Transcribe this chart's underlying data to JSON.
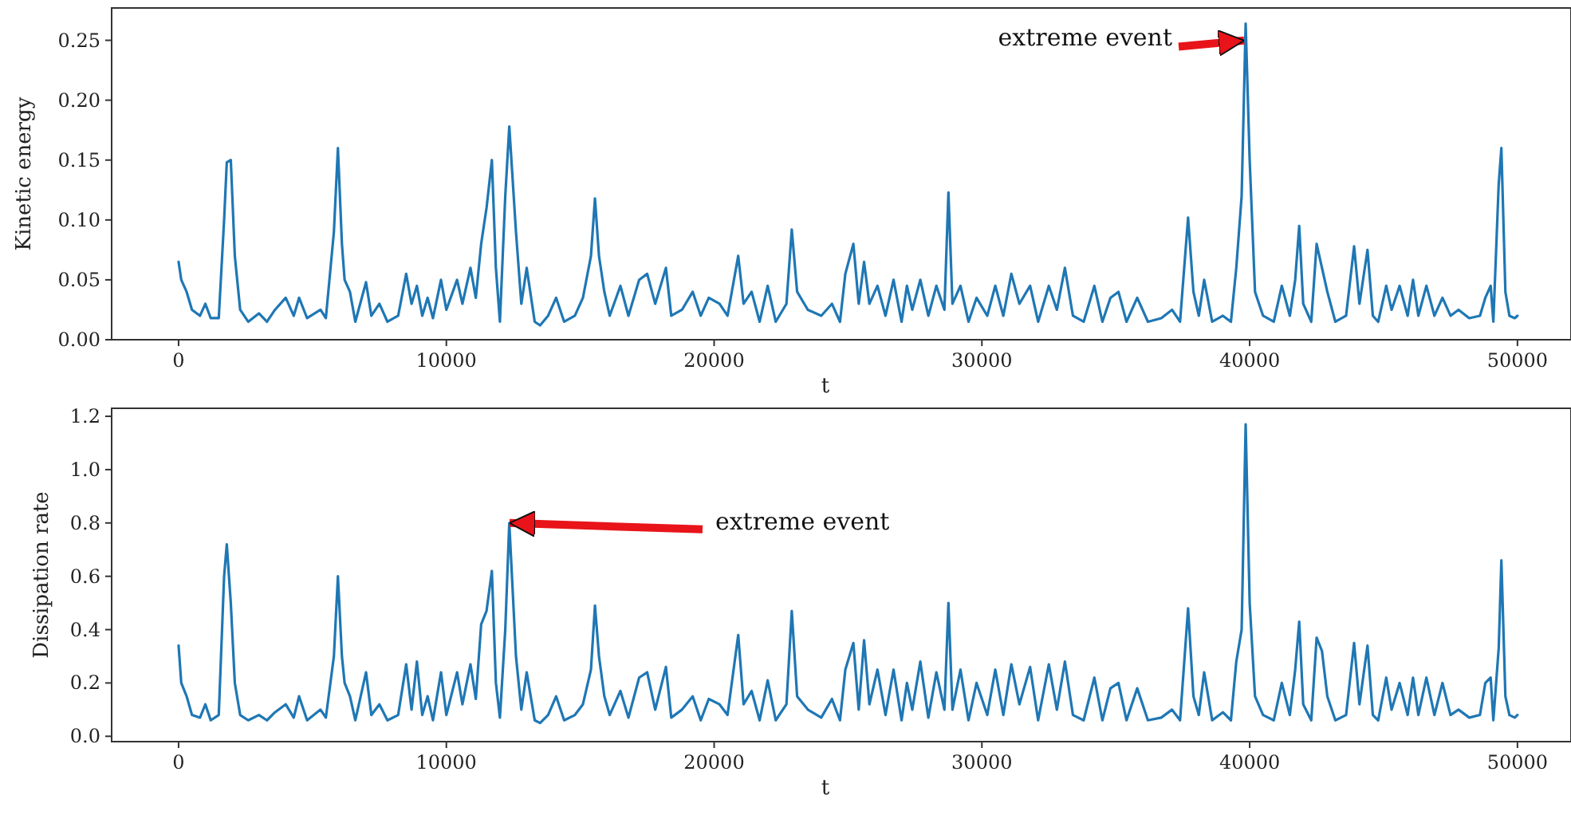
{
  "chart_data": [
    {
      "type": "line",
      "xlabel": "t",
      "ylabel": "Kinetic energy",
      "xlim": [
        -2500,
        52000
      ],
      "xticks": [
        0,
        10000,
        20000,
        30000,
        40000,
        50000
      ],
      "ylim": [
        0,
        0.277
      ],
      "yticks": [
        {
          "value": 0,
          "label": "0.00"
        },
        {
          "value": 0.05,
          "label": "0.05"
        },
        {
          "value": 0.1,
          "label": "0.10"
        },
        {
          "value": 0.15,
          "label": "0.15"
        },
        {
          "value": 0.2,
          "label": "0.20"
        },
        {
          "value": 0.25,
          "label": "0.25"
        }
      ],
      "annotations": [
        {
          "text": "extreme event",
          "x": 39850,
          "y": 0.25
        }
      ],
      "x": [
        0,
        100,
        300,
        500,
        800,
        1000,
        1200,
        1500,
        1700,
        1800,
        1950,
        2100,
        2300,
        2600,
        3000,
        3300,
        3600,
        4000,
        4300,
        4500,
        4800,
        5300,
        5500,
        5800,
        5950,
        6100,
        6200,
        6400,
        6600,
        7000,
        7200,
        7500,
        7800,
        8200,
        8500,
        8700,
        8900,
        9100,
        9300,
        9500,
        9800,
        10000,
        10400,
        10600,
        10900,
        11100,
        11300,
        11500,
        11700,
        11850,
        12000,
        12200,
        12350,
        12600,
        12800,
        13000,
        13300,
        13500,
        13800,
        14100,
        14400,
        14800,
        15100,
        15400,
        15550,
        15700,
        15900,
        16100,
        16500,
        16800,
        17200,
        17500,
        17800,
        18200,
        18400,
        18800,
        19200,
        19500,
        19800,
        20200,
        20500,
        20900,
        21100,
        21400,
        21700,
        22000,
        22300,
        22700,
        22900,
        23100,
        23500,
        24000,
        24400,
        24700,
        24900,
        25200,
        25400,
        25600,
        25800,
        26100,
        26400,
        26700,
        27000,
        27200,
        27400,
        27700,
        28000,
        28300,
        28600,
        28750,
        28900,
        29200,
        29500,
        29800,
        30200,
        30500,
        30800,
        31100,
        31400,
        31800,
        32100,
        32500,
        32800,
        33100,
        33400,
        33800,
        34200,
        34500,
        34800,
        35100,
        35400,
        35800,
        36200,
        36700,
        37100,
        37400,
        37700,
        37900,
        38100,
        38300,
        38600,
        39000,
        39300,
        39500,
        39700,
        39850,
        40000,
        40200,
        40500,
        40900,
        41200,
        41500,
        41700,
        41850,
        42000,
        42300,
        42500,
        42700,
        42900,
        43200,
        43600,
        43900,
        44100,
        44400,
        44600,
        44800,
        45100,
        45300,
        45600,
        45900,
        46100,
        46300,
        46600,
        46900,
        47200,
        47500,
        47800,
        48200,
        48600,
        48800,
        49000,
        49100,
        49300,
        49400,
        49550,
        49700,
        49900,
        50000
      ],
      "series": [
        {
          "color": "#1f77b4",
          "values": [
            0.065,
            0.05,
            0.04,
            0.025,
            0.02,
            0.03,
            0.018,
            0.018,
            0.1,
            0.148,
            0.15,
            0.07,
            0.025,
            0.015,
            0.022,
            0.015,
            0.025,
            0.035,
            0.02,
            0.035,
            0.018,
            0.025,
            0.018,
            0.09,
            0.16,
            0.08,
            0.05,
            0.04,
            0.015,
            0.048,
            0.02,
            0.03,
            0.015,
            0.02,
            0.055,
            0.03,
            0.045,
            0.02,
            0.035,
            0.018,
            0.05,
            0.025,
            0.05,
            0.03,
            0.06,
            0.035,
            0.08,
            0.11,
            0.15,
            0.06,
            0.015,
            0.12,
            0.178,
            0.09,
            0.03,
            0.06,
            0.015,
            0.012,
            0.02,
            0.035,
            0.015,
            0.02,
            0.035,
            0.07,
            0.118,
            0.07,
            0.04,
            0.02,
            0.045,
            0.02,
            0.05,
            0.055,
            0.03,
            0.06,
            0.02,
            0.025,
            0.04,
            0.02,
            0.035,
            0.03,
            0.02,
            0.07,
            0.03,
            0.04,
            0.015,
            0.045,
            0.015,
            0.03,
            0.092,
            0.04,
            0.025,
            0.02,
            0.03,
            0.015,
            0.055,
            0.08,
            0.03,
            0.065,
            0.03,
            0.045,
            0.02,
            0.05,
            0.015,
            0.045,
            0.025,
            0.05,
            0.02,
            0.045,
            0.025,
            0.123,
            0.03,
            0.045,
            0.015,
            0.035,
            0.02,
            0.045,
            0.02,
            0.055,
            0.03,
            0.045,
            0.015,
            0.045,
            0.025,
            0.06,
            0.02,
            0.015,
            0.045,
            0.015,
            0.035,
            0.04,
            0.015,
            0.035,
            0.015,
            0.018,
            0.025,
            0.015,
            0.102,
            0.04,
            0.02,
            0.05,
            0.015,
            0.02,
            0.015,
            0.06,
            0.12,
            0.264,
            0.15,
            0.04,
            0.02,
            0.015,
            0.045,
            0.02,
            0.05,
            0.095,
            0.03,
            0.015,
            0.08,
            0.06,
            0.04,
            0.015,
            0.02,
            0.078,
            0.03,
            0.075,
            0.02,
            0.015,
            0.045,
            0.025,
            0.045,
            0.02,
            0.05,
            0.02,
            0.045,
            0.02,
            0.035,
            0.02,
            0.025,
            0.018,
            0.02,
            0.035,
            0.045,
            0.015,
            0.13,
            0.16,
            0.04,
            0.02,
            0.018,
            0.02
          ]
        }
      ]
    },
    {
      "type": "line",
      "xlabel": "t",
      "ylabel": "Dissipation rate",
      "xlim": [
        -2500,
        52000
      ],
      "xticks": [
        0,
        10000,
        20000,
        30000,
        40000,
        50000
      ],
      "ylim": [
        -0.02,
        1.23
      ],
      "yticks": [
        {
          "value": 0,
          "label": "0.0"
        },
        {
          "value": 0.2,
          "label": "0.2"
        },
        {
          "value": 0.4,
          "label": "0.4"
        },
        {
          "value": 0.6,
          "label": "0.6"
        },
        {
          "value": 0.8,
          "label": "0.8"
        },
        {
          "value": 1,
          "label": "1.0"
        },
        {
          "value": 1.2,
          "label": "1.2"
        }
      ],
      "annotations": [
        {
          "text": "extreme event",
          "x": 12300,
          "y": 0.8
        }
      ],
      "x": [
        0,
        100,
        300,
        500,
        800,
        1000,
        1200,
        1500,
        1700,
        1800,
        1950,
        2100,
        2300,
        2600,
        3000,
        3300,
        3600,
        4000,
        4300,
        4500,
        4800,
        5300,
        5500,
        5800,
        5950,
        6100,
        6200,
        6400,
        6600,
        7000,
        7200,
        7500,
        7800,
        8200,
        8500,
        8700,
        8900,
        9100,
        9300,
        9500,
        9800,
        10000,
        10400,
        10600,
        10900,
        11100,
        11300,
        11500,
        11700,
        11850,
        12000,
        12200,
        12350,
        12600,
        12800,
        13000,
        13300,
        13500,
        13800,
        14100,
        14400,
        14800,
        15100,
        15400,
        15550,
        15700,
        15900,
        16100,
        16500,
        16800,
        17200,
        17500,
        17800,
        18200,
        18400,
        18800,
        19200,
        19500,
        19800,
        20200,
        20500,
        20900,
        21100,
        21400,
        21700,
        22000,
        22300,
        22700,
        22900,
        23100,
        23500,
        24000,
        24400,
        24700,
        24900,
        25200,
        25400,
        25600,
        25800,
        26100,
        26400,
        26700,
        27000,
        27200,
        27400,
        27700,
        28000,
        28300,
        28600,
        28750,
        28900,
        29200,
        29500,
        29800,
        30200,
        30500,
        30800,
        31100,
        31400,
        31800,
        32100,
        32500,
        32800,
        33100,
        33400,
        33800,
        34200,
        34500,
        34800,
        35100,
        35400,
        35800,
        36200,
        36700,
        37100,
        37400,
        37700,
        37900,
        38100,
        38300,
        38600,
        39000,
        39300,
        39500,
        39700,
        39850,
        40000,
        40200,
        40500,
        40900,
        41200,
        41500,
        41700,
        41850,
        42000,
        42300,
        42500,
        42700,
        42900,
        43200,
        43600,
        43900,
        44100,
        44400,
        44600,
        44800,
        45100,
        45300,
        45600,
        45900,
        46100,
        46300,
        46600,
        46900,
        47200,
        47500,
        47800,
        48200,
        48600,
        48800,
        49000,
        49100,
        49300,
        49400,
        49550,
        49700,
        49900,
        50000
      ],
      "series": [
        {
          "color": "#1f77b4",
          "values": [
            0.34,
            0.2,
            0.15,
            0.08,
            0.07,
            0.12,
            0.06,
            0.08,
            0.6,
            0.72,
            0.5,
            0.2,
            0.08,
            0.06,
            0.08,
            0.06,
            0.09,
            0.12,
            0.07,
            0.15,
            0.06,
            0.1,
            0.07,
            0.3,
            0.6,
            0.3,
            0.2,
            0.15,
            0.06,
            0.24,
            0.08,
            0.12,
            0.06,
            0.08,
            0.27,
            0.1,
            0.28,
            0.08,
            0.15,
            0.06,
            0.24,
            0.08,
            0.24,
            0.12,
            0.27,
            0.14,
            0.42,
            0.47,
            0.62,
            0.2,
            0.07,
            0.4,
            0.8,
            0.3,
            0.1,
            0.24,
            0.06,
            0.05,
            0.08,
            0.15,
            0.06,
            0.08,
            0.12,
            0.25,
            0.49,
            0.3,
            0.15,
            0.08,
            0.17,
            0.07,
            0.22,
            0.24,
            0.1,
            0.26,
            0.07,
            0.1,
            0.15,
            0.06,
            0.14,
            0.12,
            0.08,
            0.38,
            0.12,
            0.17,
            0.06,
            0.21,
            0.06,
            0.12,
            0.47,
            0.15,
            0.1,
            0.07,
            0.14,
            0.06,
            0.25,
            0.35,
            0.1,
            0.36,
            0.12,
            0.25,
            0.08,
            0.25,
            0.06,
            0.2,
            0.1,
            0.28,
            0.07,
            0.24,
            0.1,
            0.5,
            0.1,
            0.25,
            0.06,
            0.2,
            0.08,
            0.25,
            0.08,
            0.27,
            0.12,
            0.26,
            0.06,
            0.27,
            0.1,
            0.28,
            0.08,
            0.06,
            0.22,
            0.06,
            0.18,
            0.2,
            0.06,
            0.18,
            0.06,
            0.07,
            0.1,
            0.06,
            0.48,
            0.15,
            0.08,
            0.24,
            0.06,
            0.09,
            0.06,
            0.28,
            0.4,
            1.17,
            0.5,
            0.15,
            0.08,
            0.06,
            0.2,
            0.08,
            0.25,
            0.43,
            0.12,
            0.06,
            0.37,
            0.32,
            0.15,
            0.06,
            0.08,
            0.35,
            0.12,
            0.34,
            0.08,
            0.06,
            0.22,
            0.1,
            0.2,
            0.08,
            0.22,
            0.08,
            0.22,
            0.08,
            0.2,
            0.08,
            0.1,
            0.07,
            0.08,
            0.2,
            0.22,
            0.06,
            0.33,
            0.66,
            0.15,
            0.08,
            0.07,
            0.08
          ]
        }
      ]
    }
  ]
}
